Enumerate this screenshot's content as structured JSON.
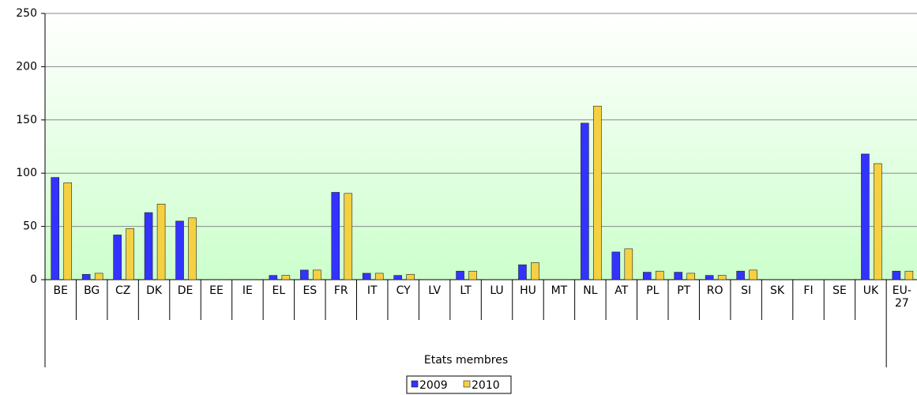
{
  "chart_data": {
    "type": "bar",
    "x_label": "Etats membres",
    "categories": [
      "BE",
      "BG",
      "CZ",
      "DK",
      "DE",
      "EE",
      "IE",
      "EL",
      "ES",
      "FR",
      "IT",
      "CY",
      "LV",
      "LT",
      "LU",
      "HU",
      "MT",
      "NL",
      "AT",
      "PL",
      "PT",
      "RO",
      "SI",
      "SK",
      "FI",
      "SE",
      "UK",
      "EU-27"
    ],
    "series": [
      {
        "name": "2009",
        "color": "#3333ff",
        "values": [
          96,
          5,
          42,
          63,
          55,
          0,
          0,
          4,
          9,
          82,
          6,
          4,
          0,
          8,
          0,
          14,
          0,
          147,
          26,
          7,
          7,
          4,
          8,
          0,
          0,
          0,
          118,
          8
        ]
      },
      {
        "name": "2010",
        "color": "#f5d142",
        "values": [
          91,
          6,
          48,
          71,
          58,
          0,
          0,
          4,
          9,
          81,
          6,
          5,
          0,
          8,
          0,
          16,
          0,
          163,
          29,
          8,
          6,
          4,
          9,
          0,
          0,
          0,
          109,
          8
        ]
      }
    ],
    "ylim": [
      0,
      250
    ],
    "yticks": [
      0,
      50,
      100,
      150,
      200,
      250
    ],
    "grid": true,
    "legend": "bottom"
  }
}
